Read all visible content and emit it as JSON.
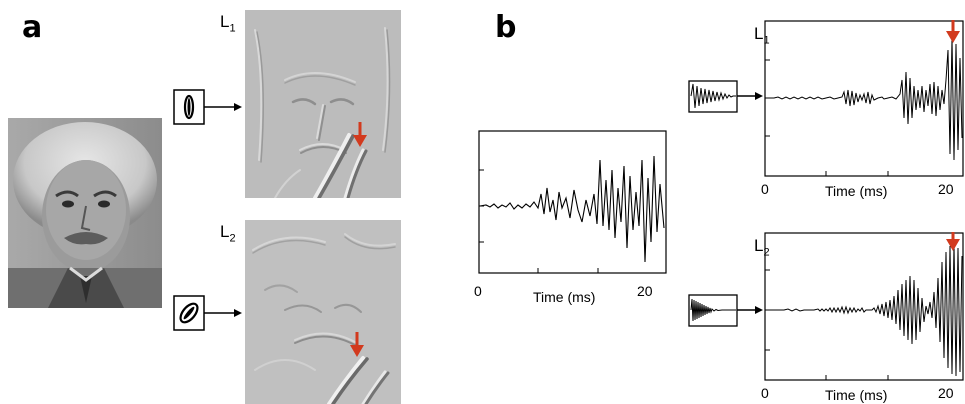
{
  "panels": {
    "a": {
      "letter": "a",
      "layers": [
        {
          "name": "L",
          "index": "1"
        },
        {
          "name": "L",
          "index": "2"
        }
      ]
    },
    "b": {
      "letter": "b",
      "layers": [
        {
          "name": "L",
          "index": "1"
        },
        {
          "name": "L",
          "index": "2"
        }
      ]
    }
  },
  "plots": {
    "input": {
      "x_start": "0",
      "x_end": "20",
      "xlabel": "Time (ms)"
    },
    "l1": {
      "x_start": "0",
      "x_end": "20",
      "xlabel": "Time (ms)"
    },
    "l2": {
      "x_start": "0",
      "x_end": "20",
      "xlabel": "Time (ms)"
    }
  },
  "colors": {
    "arrow": "#d23a1e",
    "filtered_background": "#bcbcbc"
  },
  "icons": {
    "portrait": "grayscale-portrait-photo",
    "filter_a1": "vertical-elliptical-filter-icon",
    "filter_a2": "oblique-elliptical-filter-icon",
    "filter_b1": "decaying-oscillation-filter-icon",
    "filter_b2": "growing-oscillation-filter-icon",
    "marker": "red-down-arrow-icon"
  }
}
